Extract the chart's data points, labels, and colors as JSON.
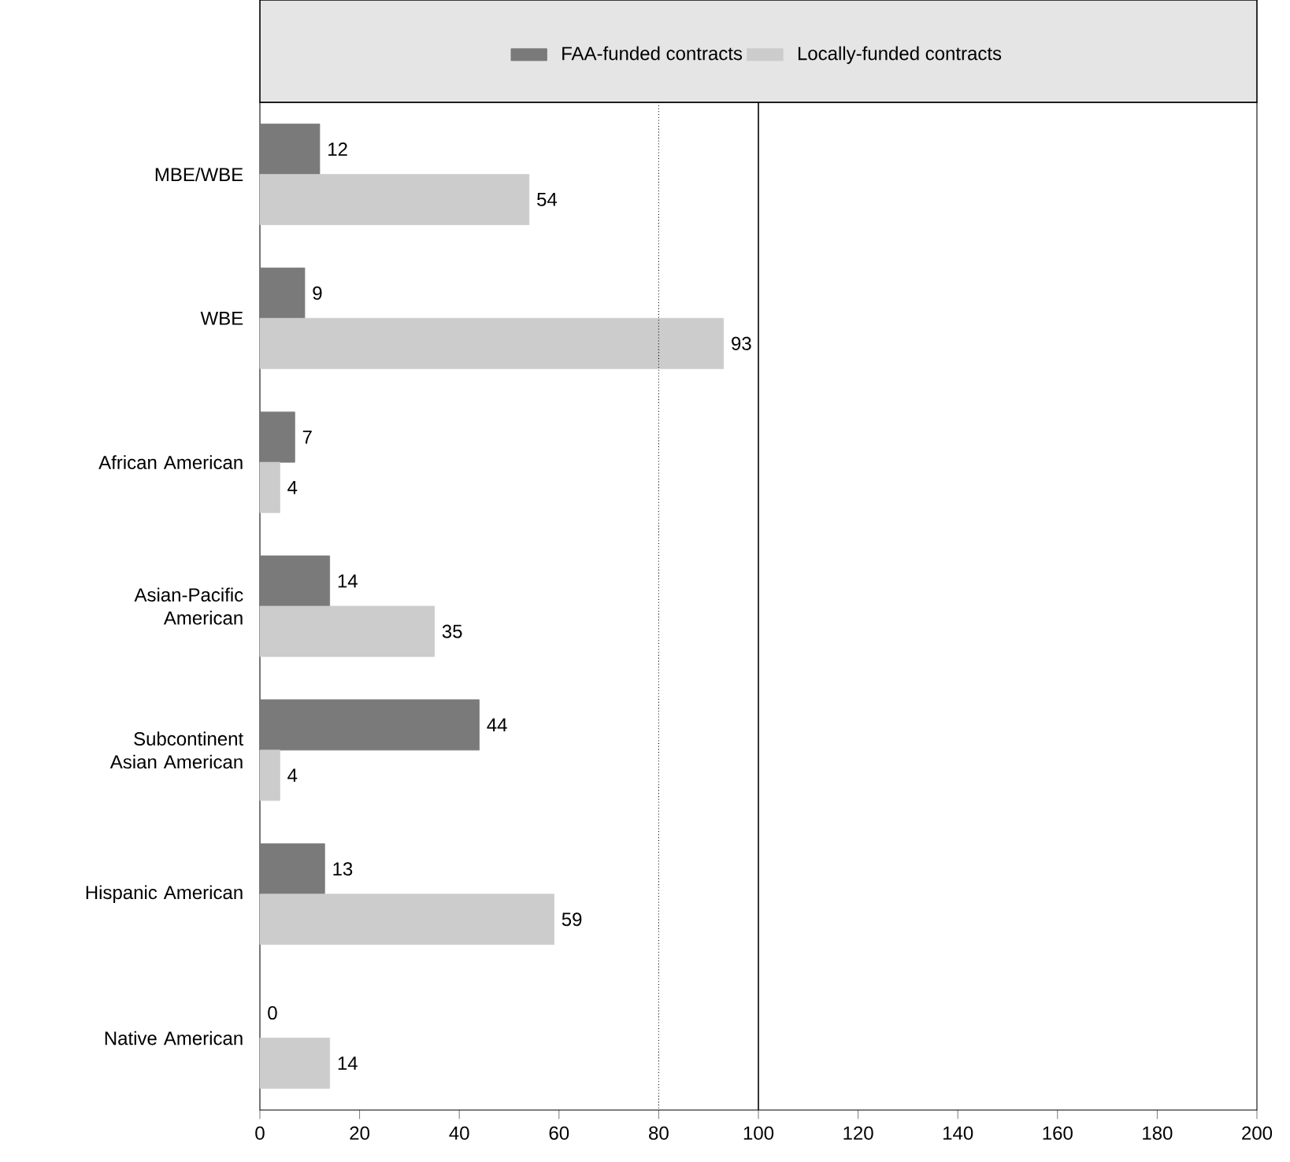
{
  "chart_data": {
    "type": "bar",
    "orientation": "horizontal",
    "categories": [
      "MBE/WBE",
      "WBE",
      "African American",
      "Asian-Pacific American",
      "Subcontinent Asian American",
      "Hispanic American",
      "Native American"
    ],
    "series": [
      {
        "name": "FAA-funded contracts",
        "color": "#7a7a7a",
        "values": [
          12,
          9,
          7,
          14,
          44,
          13,
          0
        ]
      },
      {
        "name": "Locally-funded contracts",
        "color": "#cccccc",
        "values": [
          54,
          93,
          4,
          35,
          4,
          59,
          14
        ]
      }
    ],
    "xlim": [
      0,
      200
    ],
    "xticks": [
      0,
      20,
      40,
      60,
      80,
      100,
      120,
      140,
      160,
      180,
      200
    ],
    "ref_lines": [
      {
        "axis": "x",
        "value": 80,
        "line_style": "dotted",
        "color": "#000000"
      },
      {
        "axis": "x",
        "value": 100,
        "line_style": "solid",
        "color": "#000000"
      }
    ],
    "data_labels": true,
    "legend": "top",
    "grid": false
  }
}
